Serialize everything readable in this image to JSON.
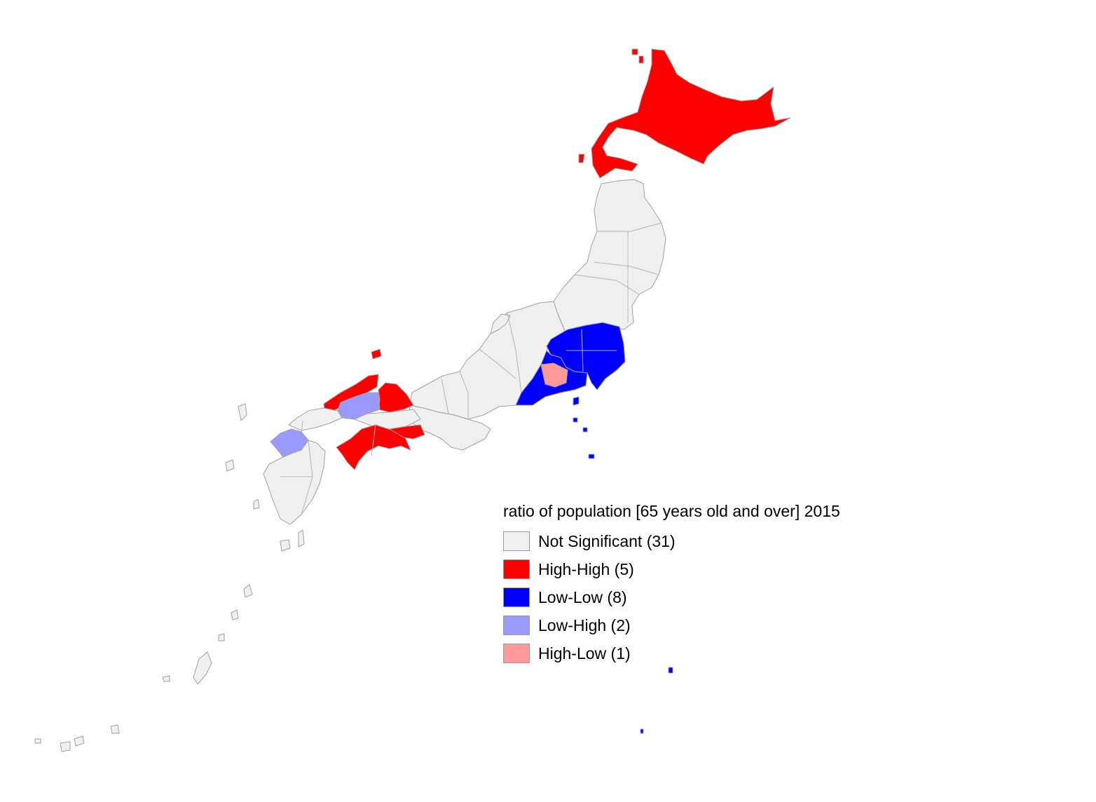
{
  "legend": {
    "title": "ratio of population [65 years old and over] 2015",
    "items": [
      {
        "key": "not_significant",
        "label": "Not Significant (31)",
        "color": "#f0f0f0"
      },
      {
        "key": "high_high",
        "label": "High-High (5)",
        "color": "#ff0000"
      },
      {
        "key": "low_low",
        "label": "Low-Low (8)",
        "color": "#0000ff"
      },
      {
        "key": "low_high",
        "label": "Low-High (2)",
        "color": "#9999ff"
      },
      {
        "key": "high_low",
        "label": "High-Low (1)",
        "color": "#ff9999"
      }
    ]
  },
  "colors": {
    "border": "#a0a0a0",
    "background": "#ffffff"
  },
  "regions": [
    {
      "name": "Hokkaido",
      "category": "high_high"
    },
    {
      "name": "Tohoku",
      "category": "not_significant"
    },
    {
      "name": "Chubu",
      "category": "not_significant"
    },
    {
      "name": "Kanto",
      "category": "low_low"
    },
    {
      "name": "Kanagawa-Shizuoka coast",
      "category": "low_low"
    },
    {
      "name": "Yamanashi",
      "category": "high_low"
    },
    {
      "name": "Kinki",
      "category": "not_significant"
    },
    {
      "name": "Shimane",
      "category": "high_high"
    },
    {
      "name": "Okayama-Tottori",
      "category": "high_high"
    },
    {
      "name": "Hiroshima",
      "category": "low_high"
    },
    {
      "name": "Fukuoka",
      "category": "low_high"
    },
    {
      "name": "Shikoku",
      "category": "high_high"
    },
    {
      "name": "Kyushu",
      "category": "not_significant"
    },
    {
      "name": "Izu Islands",
      "category": "low_low"
    },
    {
      "name": "Okinawa",
      "category": "not_significant"
    }
  ]
}
